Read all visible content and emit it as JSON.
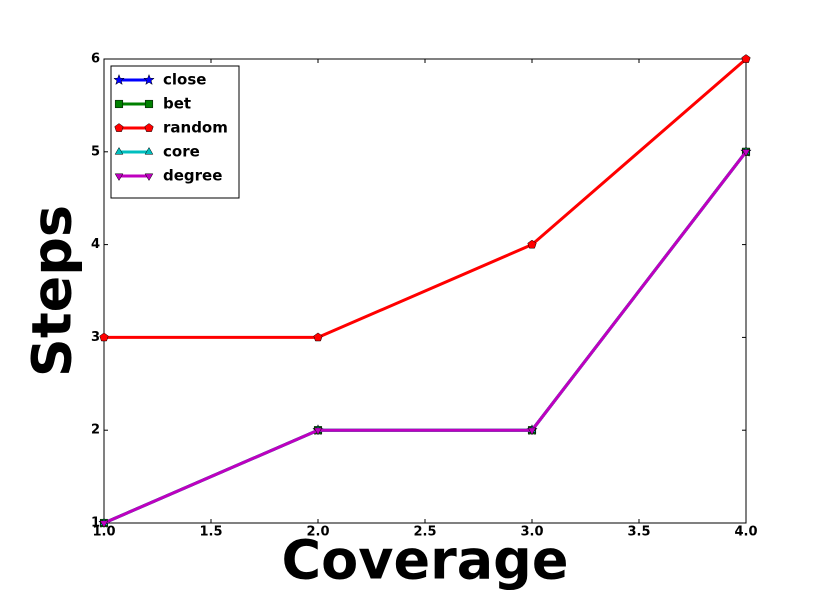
{
  "chart_data": {
    "type": "line",
    "xlabel": "Coverage",
    "ylabel": "Steps",
    "x": [
      1,
      2,
      3,
      4
    ],
    "series": [
      {
        "name": "close",
        "color": "#0000ff",
        "marker": "star",
        "values": [
          1,
          2,
          2,
          5
        ]
      },
      {
        "name": "bet",
        "color": "#008000",
        "marker": "square",
        "values": [
          1,
          2,
          2,
          5
        ]
      },
      {
        "name": "random",
        "color": "#ff0000",
        "marker": "pentagon",
        "values": [
          3,
          3,
          4,
          6
        ]
      },
      {
        "name": "core",
        "color": "#00bfbf",
        "marker": "triangle-up",
        "values": [
          1,
          2,
          2,
          5
        ]
      },
      {
        "name": "degree",
        "color": "#bf00bf",
        "marker": "triangle-down",
        "values": [
          1,
          2,
          2,
          5
        ]
      }
    ],
    "xlim": [
      1,
      4
    ],
    "xticks": [
      {
        "value": 1,
        "label": "1.0"
      },
      {
        "value": 1.5,
        "label": "1.5"
      },
      {
        "value": 2,
        "label": "2.0"
      },
      {
        "value": 2.5,
        "label": "2.5"
      },
      {
        "value": 3,
        "label": "3.0"
      },
      {
        "value": 3.5,
        "label": "3.5"
      },
      {
        "value": 4,
        "label": "4.0"
      }
    ],
    "ylim": [
      1,
      6
    ],
    "yticks": [
      1,
      2,
      3,
      4,
      5,
      6
    ],
    "legend": "upper-left"
  }
}
